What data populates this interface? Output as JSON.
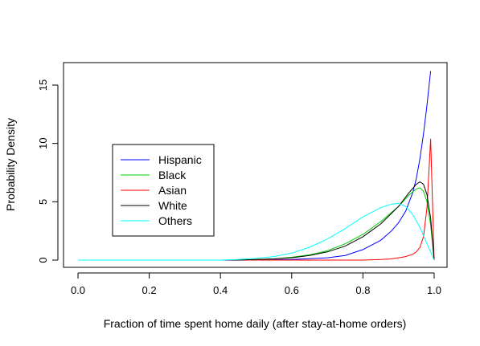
{
  "chart_data": {
    "type": "line",
    "title": "",
    "xlabel": "Fraction of time spent home daily (after stay-at-home orders)",
    "ylabel": "Probability Density",
    "xlim": [
      0.0,
      1.0
    ],
    "ylim": [
      0,
      16.5
    ],
    "xticks": [
      "0.0",
      "0.2",
      "0.4",
      "0.6",
      "0.8",
      "1.0"
    ],
    "yticks": [
      "0",
      "5",
      "10",
      "15"
    ],
    "xtick_values": [
      0.0,
      0.2,
      0.4,
      0.6,
      0.8,
      1.0
    ],
    "ytick_values": [
      0,
      5,
      10,
      15
    ],
    "grid": false,
    "legend_position": "left-middle",
    "series": [
      {
        "name": "Hispanic",
        "color": "#0000ff",
        "x": [
          0.0,
          0.5,
          0.6,
          0.7,
          0.75,
          0.8,
          0.85,
          0.88,
          0.9,
          0.92,
          0.94,
          0.95,
          0.96,
          0.97,
          0.98,
          0.99
        ],
        "y": [
          0.0,
          0.0,
          0.05,
          0.2,
          0.4,
          0.9,
          1.7,
          2.5,
          3.2,
          4.2,
          5.8,
          7.0,
          8.7,
          10.8,
          13.3,
          16.2
        ]
      },
      {
        "name": "Black",
        "color": "#00cd00",
        "x": [
          0.0,
          0.45,
          0.5,
          0.55,
          0.6,
          0.65,
          0.7,
          0.75,
          0.8,
          0.85,
          0.9,
          0.93,
          0.95,
          0.96,
          0.97,
          0.98,
          0.99,
          1.0
        ],
        "y": [
          0.0,
          0.0,
          0.05,
          0.1,
          0.25,
          0.45,
          0.8,
          1.4,
          2.2,
          3.3,
          4.6,
          5.6,
          6.1,
          6.2,
          5.9,
          5.0,
          3.0,
          0.0
        ]
      },
      {
        "name": "Asian",
        "color": "#ff0000",
        "x": [
          0.0,
          0.8,
          0.85,
          0.88,
          0.9,
          0.92,
          0.94,
          0.95,
          0.96,
          0.97,
          0.98,
          0.99,
          1.0
        ],
        "y": [
          0.0,
          0.0,
          0.05,
          0.1,
          0.2,
          0.3,
          0.5,
          0.7,
          1.1,
          2.0,
          4.5,
          10.4,
          0.0
        ]
      },
      {
        "name": "White",
        "color": "#000000",
        "x": [
          0.0,
          0.45,
          0.5,
          0.55,
          0.6,
          0.65,
          0.7,
          0.75,
          0.8,
          0.85,
          0.9,
          0.93,
          0.95,
          0.96,
          0.97,
          0.98,
          0.99,
          1.0
        ],
        "y": [
          0.0,
          0.0,
          0.05,
          0.1,
          0.2,
          0.4,
          0.7,
          1.2,
          2.0,
          3.1,
          4.6,
          5.8,
          6.5,
          6.7,
          6.5,
          5.6,
          3.6,
          0.0
        ]
      },
      {
        "name": "Others",
        "color": "#00ffff",
        "x": [
          0.0,
          0.4,
          0.45,
          0.5,
          0.55,
          0.6,
          0.65,
          0.7,
          0.75,
          0.8,
          0.85,
          0.88,
          0.9,
          0.92,
          0.94,
          0.96,
          0.98,
          1.0
        ],
        "y": [
          0.0,
          0.0,
          0.05,
          0.15,
          0.3,
          0.6,
          1.1,
          1.8,
          2.7,
          3.7,
          4.5,
          4.8,
          4.85,
          4.6,
          3.9,
          2.8,
          1.4,
          0.0
        ]
      }
    ]
  }
}
